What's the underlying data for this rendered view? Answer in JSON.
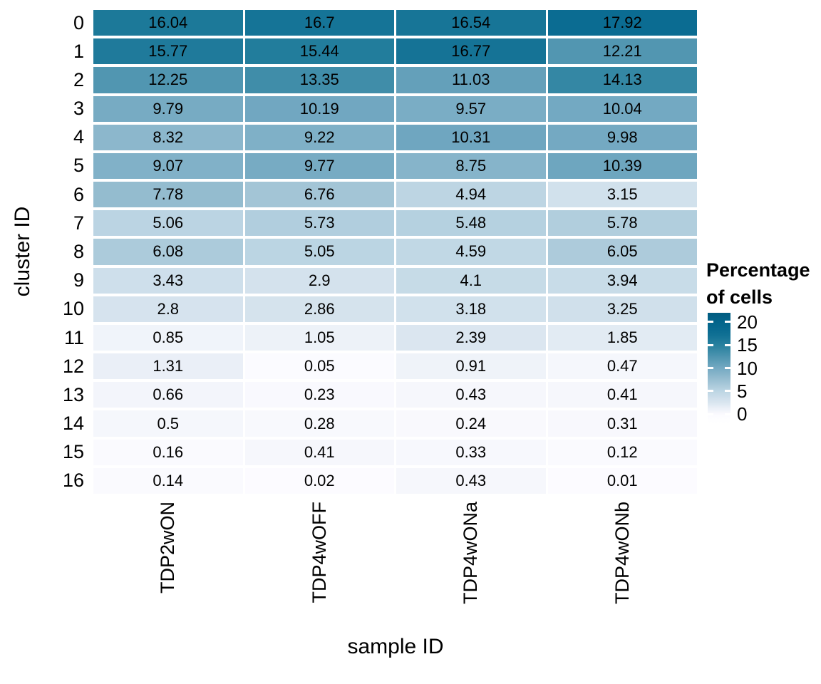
{
  "axes": {
    "x_title": "sample ID",
    "y_title": "cluster ID"
  },
  "legend": {
    "title_lines": [
      "Percentage",
      "of cells"
    ],
    "tick_labels": [
      "20",
      "15",
      "10",
      "5",
      "0"
    ]
  },
  "chart_data": {
    "type": "heatmap",
    "title": "",
    "xlabel": "sample ID",
    "ylabel": "cluster ID",
    "x_categories": [
      "TDP2wON",
      "TDP4wOFF",
      "TDP4wONa",
      "TDP4wONb"
    ],
    "y_categories": [
      "0",
      "1",
      "2",
      "3",
      "4",
      "5",
      "6",
      "7",
      "8",
      "9",
      "10",
      "11",
      "12",
      "13",
      "14",
      "15",
      "16"
    ],
    "values": [
      [
        16.04,
        16.7,
        16.54,
        17.92
      ],
      [
        15.77,
        15.44,
        16.77,
        12.21
      ],
      [
        12.25,
        13.35,
        11.03,
        14.13
      ],
      [
        9.79,
        10.19,
        9.57,
        10.04
      ],
      [
        8.32,
        9.22,
        10.31,
        9.98
      ],
      [
        9.07,
        9.77,
        8.75,
        10.39
      ],
      [
        7.78,
        6.76,
        4.94,
        3.15
      ],
      [
        5.06,
        5.73,
        5.48,
        5.78
      ],
      [
        6.08,
        5.05,
        4.59,
        6.05
      ],
      [
        3.43,
        2.9,
        4.1,
        3.94
      ],
      [
        2.8,
        2.86,
        3.18,
        3.25
      ],
      [
        0.85,
        1.05,
        2.39,
        1.85
      ],
      [
        1.31,
        0.05,
        0.91,
        0.47
      ],
      [
        0.66,
        0.23,
        0.43,
        0.41
      ],
      [
        0.5,
        0.28,
        0.24,
        0.31
      ],
      [
        0.16,
        0.41,
        0.33,
        0.12
      ],
      [
        0.14,
        0.02,
        0.43,
        0.01
      ]
    ],
    "legend_title": "Percentage of cells",
    "legend_ticks": [
      20,
      15,
      10,
      5,
      0
    ],
    "color_range": [
      0,
      20
    ],
    "legend_position": "right",
    "grid": false,
    "color_scale": {
      "low": "#FCFBFF",
      "high": "#02648B",
      "stops": [
        {
          "v": -2,
          "c": "#FFFFFF"
        },
        {
          "v": 0,
          "c": "#FCFBFF"
        },
        {
          "v": 2.5,
          "c": "#D9E5EF"
        },
        {
          "v": 5,
          "c": "#BCD5E3"
        },
        {
          "v": 7.5,
          "c": "#98BED1"
        },
        {
          "v": 10,
          "c": "#74A9C2"
        },
        {
          "v": 12.5,
          "c": "#4D94AF"
        },
        {
          "v": 15,
          "c": "#27809E"
        },
        {
          "v": 17.5,
          "c": "#0D6E93"
        },
        {
          "v": 20,
          "c": "#02648B"
        },
        {
          "v": 22,
          "c": "#015C80"
        }
      ]
    }
  }
}
